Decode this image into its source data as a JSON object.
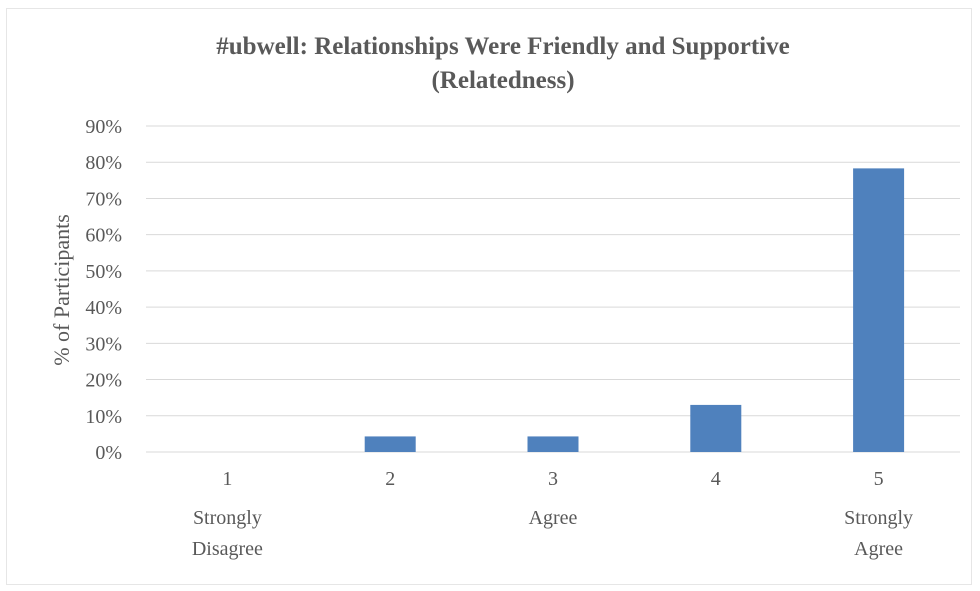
{
  "chart_data": {
    "type": "bar",
    "title_line1": "#ubwell: Relationships Were Friendly and Supportive",
    "title_line2": "(Relatedness)",
    "xlabel": "",
    "ylabel": "% of Participants",
    "categories": [
      "1",
      "2",
      "3",
      "4",
      "5"
    ],
    "category_sublabels": [
      [
        "Strongly",
        "Disagree"
      ],
      [],
      [
        "Agree"
      ],
      [],
      [
        "Strongly",
        "Agree"
      ]
    ],
    "values": [
      0,
      4.3,
      4.3,
      13,
      78.3
    ],
    "ylim": [
      0,
      90
    ],
    "y_ticks": [
      "0%",
      "10%",
      "20%",
      "30%",
      "40%",
      "50%",
      "60%",
      "70%",
      "80%",
      "90%"
    ],
    "grid": true,
    "bar_color": "#4f81bd",
    "legend": "none"
  }
}
